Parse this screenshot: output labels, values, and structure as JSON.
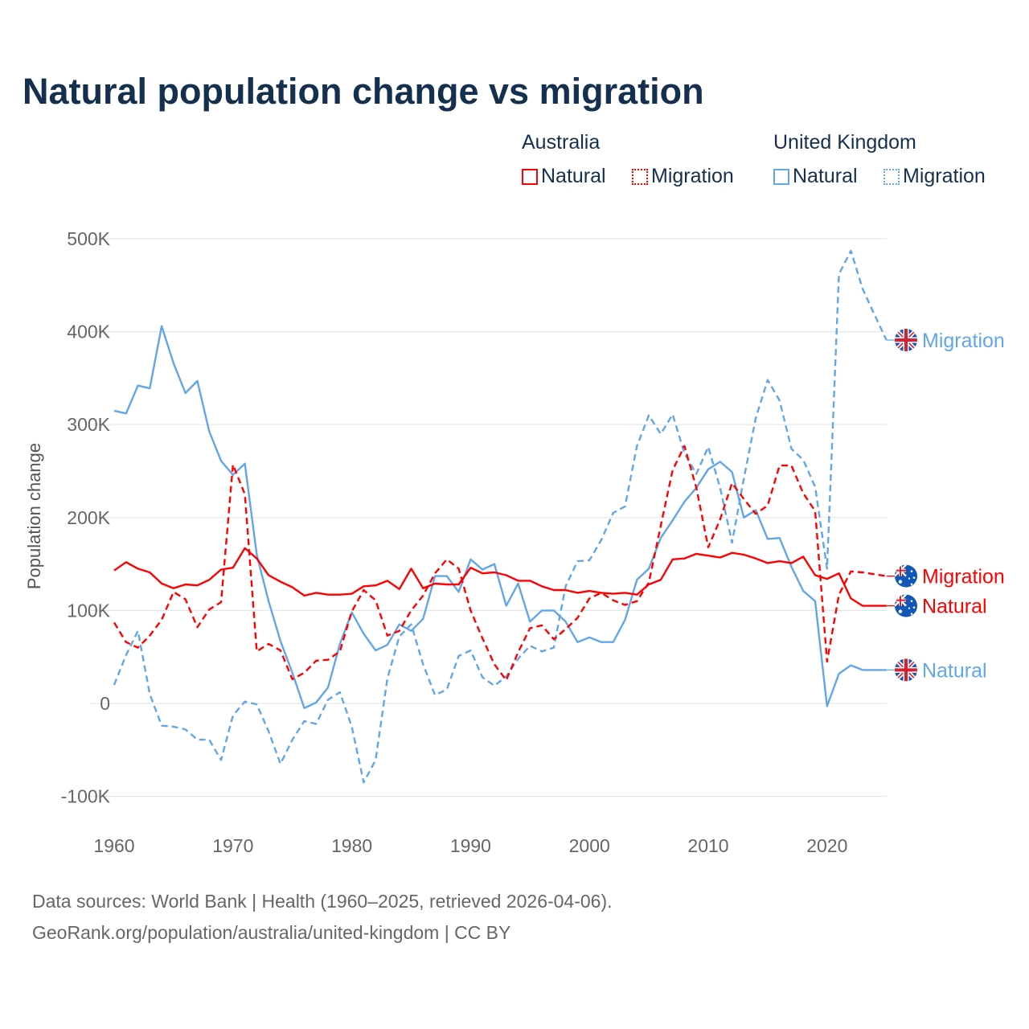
{
  "chart_data": {
    "type": "line",
    "title": "Natural population change vs migration",
    "ylabel": "Population change",
    "xlabel": "",
    "ylim": [
      -100000,
      500000
    ],
    "xlim": [
      1960,
      2025
    ],
    "yticks": [
      -100000,
      0,
      100000,
      200000,
      300000,
      400000,
      500000
    ],
    "ytick_labels": [
      "-100K",
      "0",
      "100K",
      "200K",
      "300K",
      "400K",
      "500K"
    ],
    "xticks": [
      1960,
      1970,
      1980,
      1990,
      2000,
      2010,
      2020
    ],
    "xtick_labels": [
      "1960",
      "1970",
      "1980",
      "1990",
      "2000",
      "2010",
      "2020"
    ],
    "grid": true,
    "legend": {
      "placement": "top-right",
      "groups": [
        {
          "label": "Australia",
          "items": [
            {
              "label": "Natural",
              "style": "solid",
              "color": "#ff0000"
            },
            {
              "label": "Migration",
              "style": "dotted",
              "color": "#ff0000"
            }
          ]
        },
        {
          "label": "United Kingdom",
          "items": [
            {
              "label": "Natural",
              "style": "solid",
              "color": "#62a6ea"
            },
            {
              "label": "Migration",
              "style": "dotted",
              "color": "#62a6ea"
            }
          ]
        }
      ]
    },
    "x_start": 1960,
    "series": [
      {
        "name": "Australia Natural",
        "country": "Australia",
        "flag": "australia-flag",
        "end_label": "Natural",
        "color": "#ff0000",
        "dash": false,
        "values": [
          143000,
          152000,
          145000,
          141000,
          129000,
          124000,
          128000,
          127000,
          133000,
          144000,
          146000,
          167000,
          156000,
          138000,
          131000,
          125000,
          116000,
          119000,
          117000,
          117000,
          118000,
          126000,
          127000,
          132000,
          123000,
          145000,
          124000,
          129000,
          128000,
          128000,
          146000,
          140000,
          141000,
          138000,
          132000,
          132000,
          126000,
          122000,
          122000,
          119000,
          121000,
          119000,
          118000,
          119000,
          117000,
          128000,
          133000,
          155000,
          156000,
          161000,
          159000,
          157000,
          162000,
          160000,
          156000,
          151000,
          153000,
          151000,
          158000,
          138000,
          134000,
          140000,
          113000,
          105000,
          105000,
          105000
        ]
      },
      {
        "name": "Australia Migration",
        "country": "Australia",
        "flag": "australia-flag",
        "end_label": "Migration",
        "color": "#ff0000",
        "dash": true,
        "values": [
          87000,
          66000,
          60000,
          73000,
          90000,
          120000,
          112000,
          82000,
          101000,
          109000,
          257000,
          225000,
          56000,
          64000,
          57000,
          26000,
          33000,
          46000,
          47000,
          56000,
          99000,
          122000,
          111000,
          73000,
          78000,
          100000,
          116000,
          140000,
          155000,
          145000,
          100000,
          70000,
          42000,
          25000,
          55000,
          81000,
          84000,
          69000,
          80000,
          92000,
          113000,
          119000,
          111000,
          106000,
          110000,
          130000,
          191000,
          251000,
          277000,
          232000,
          168000,
          198000,
          237000,
          220000,
          204000,
          213000,
          256000,
          256000,
          226000,
          207000,
          45000,
          117000,
          142000,
          141000,
          139000,
          137000
        ]
      },
      {
        "name": "United Kingdom Natural",
        "country": "United Kingdom",
        "flag": "uk-flag",
        "end_label": "Natural",
        "color": "#62a6ea",
        "dash": false,
        "values": [
          315000,
          312000,
          342000,
          339000,
          406000,
          366000,
          334000,
          347000,
          293000,
          261000,
          246000,
          258000,
          160000,
          110000,
          67000,
          33000,
          -5000,
          1000,
          17000,
          64000,
          98000,
          75000,
          57000,
          63000,
          85000,
          78000,
          91000,
          137000,
          137000,
          120000,
          155000,
          144000,
          150000,
          105000,
          129000,
          88000,
          100000,
          100000,
          88000,
          66000,
          71000,
          66000,
          66000,
          90000,
          133000,
          145000,
          178000,
          197000,
          217000,
          232000,
          252000,
          260000,
          249000,
          200000,
          208000,
          177000,
          178000,
          147000,
          121000,
          110000,
          -3000,
          32000,
          41000,
          36000,
          36000,
          36000
        ]
      },
      {
        "name": "United Kingdom Migration",
        "country": "United Kingdom",
        "flag": "uk-flag",
        "end_label": "Migration",
        "color": "#62a6ea",
        "dash": true,
        "values": [
          20000,
          52000,
          78000,
          10000,
          -24000,
          -25000,
          -28000,
          -39000,
          -39000,
          -61000,
          -13000,
          2000,
          -1000,
          -30000,
          -65000,
          -39000,
          -19000,
          -22000,
          4000,
          12000,
          -25000,
          -85000,
          -61000,
          27000,
          72000,
          85000,
          42000,
          9000,
          15000,
          51000,
          57000,
          28000,
          19000,
          29000,
          48000,
          62000,
          56000,
          60000,
          126000,
          153000,
          154000,
          176000,
          205000,
          212000,
          277000,
          310000,
          290000,
          311000,
          269000,
          247000,
          276000,
          232000,
          173000,
          242000,
          307000,
          348000,
          326000,
          274000,
          262000,
          233000,
          145000,
          462000,
          487000,
          446000,
          418000,
          391000
        ]
      }
    ]
  },
  "footer": {
    "source_line": "Data sources: World Bank | Health (1960–2025, retrieved 2026-04-06).",
    "credit_line": "GeoRank.org/population/australia/united-kingdom | CC BY"
  }
}
